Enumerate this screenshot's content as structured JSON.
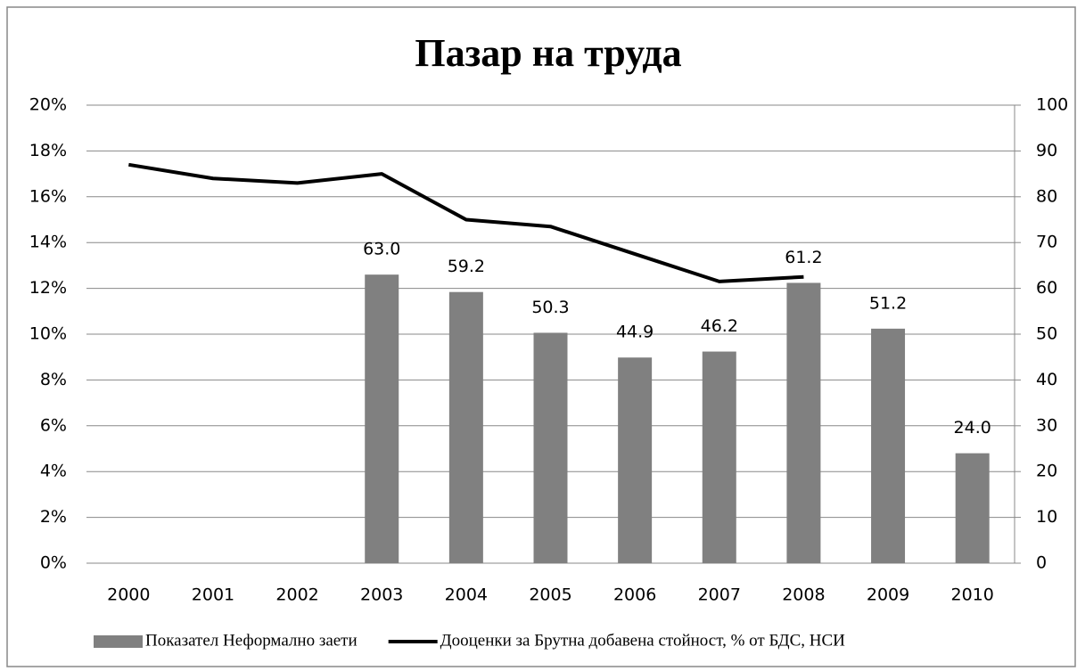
{
  "chart_data": {
    "type": "bar-line",
    "title": "Пазар на труда",
    "categories": [
      "2000",
      "2001",
      "2002",
      "2003",
      "2004",
      "2005",
      "2006",
      "2007",
      "2008",
      "2009",
      "2010"
    ],
    "series": [
      {
        "name": "Показател Неформално заети",
        "type": "bar",
        "axis": "y2",
        "color": "#808080",
        "values": [
          null,
          null,
          null,
          63.0,
          59.2,
          50.3,
          44.9,
          46.2,
          61.2,
          51.2,
          24.0
        ],
        "value_labels": [
          null,
          null,
          null,
          "63.0",
          "59.2",
          "50.3",
          "44.9",
          "46.2",
          "61.2",
          "51.2",
          "24.0"
        ]
      },
      {
        "name": "Дооценки за Брутна добавена стойност, % от БДС, НСИ",
        "type": "line",
        "axis": "y",
        "color": "#000000",
        "values": [
          17.4,
          16.8,
          16.6,
          17.0,
          15.0,
          14.7,
          13.5,
          12.3,
          12.5,
          null,
          null
        ]
      }
    ],
    "ylim": [
      0,
      20
    ],
    "yticks": [
      {
        "value": 0,
        "label": "0%"
      },
      {
        "value": 2,
        "label": "2%"
      },
      {
        "value": 4,
        "label": "4%"
      },
      {
        "value": 6,
        "label": "6%"
      },
      {
        "value": 8,
        "label": "8%"
      },
      {
        "value": 10,
        "label": "10%"
      },
      {
        "value": 12,
        "label": "12%"
      },
      {
        "value": 14,
        "label": "14%"
      },
      {
        "value": 16,
        "label": "16%"
      },
      {
        "value": 18,
        "label": "18%"
      },
      {
        "value": 20,
        "label": "20%"
      }
    ],
    "y2lim": [
      0,
      100
    ],
    "y2ticks": [
      0,
      10,
      20,
      30,
      40,
      50,
      60,
      70,
      80,
      90,
      100
    ],
    "grid": true,
    "legend": "bottom"
  }
}
